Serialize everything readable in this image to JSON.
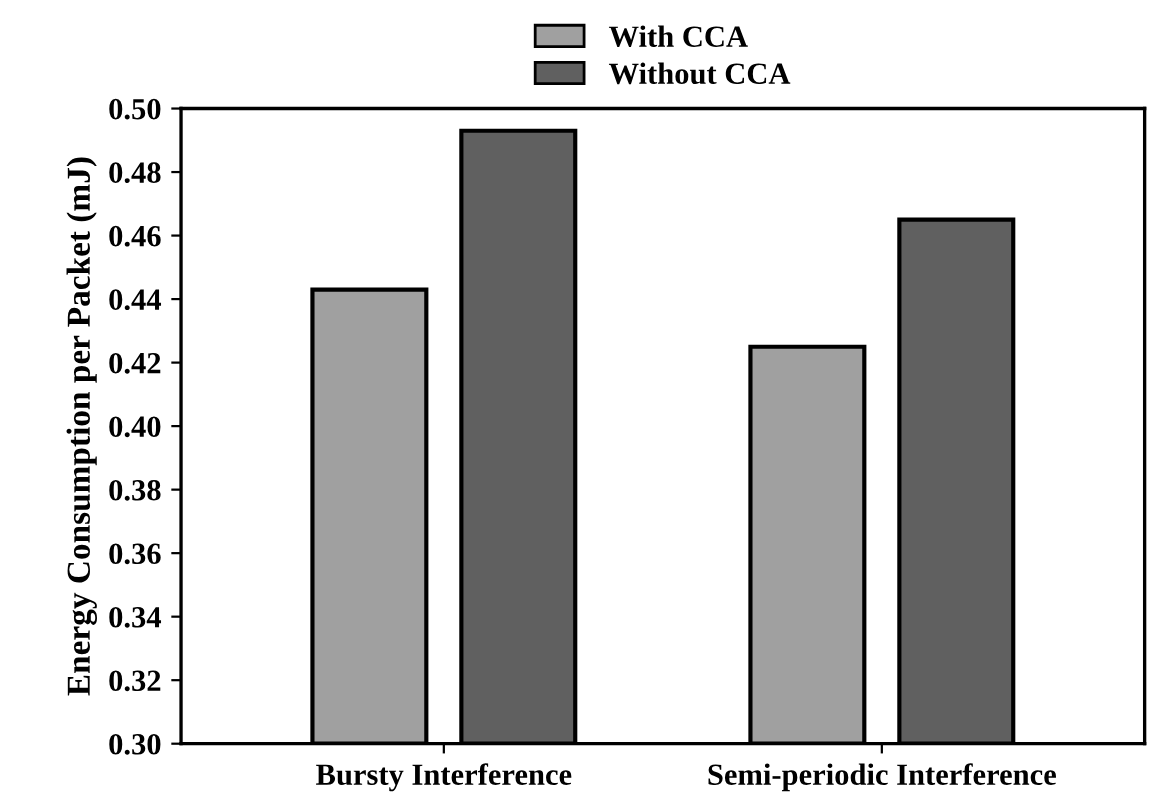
{
  "chart_data": {
    "type": "bar",
    "ylabel": "Energy Consumption per Packet (mJ)",
    "categories": [
      "Bursty Interference",
      "Semi-periodic Interference"
    ],
    "series": [
      {
        "name": "With CCA",
        "color": "#a0a0a0",
        "values": [
          0.443,
          0.425
        ]
      },
      {
        "name": "Without CCA",
        "color": "#606060",
        "values": [
          0.493,
          0.465
        ]
      }
    ],
    "ylim": [
      0.3,
      0.5
    ],
    "yticks": [
      {
        "value": 0.3,
        "label": "0.30"
      },
      {
        "value": 0.32,
        "label": "0.32"
      },
      {
        "value": 0.34,
        "label": "0.34"
      },
      {
        "value": 0.36,
        "label": "0.36"
      },
      {
        "value": 0.38,
        "label": "0.38"
      },
      {
        "value": 0.4,
        "label": "0.40"
      },
      {
        "value": 0.42,
        "label": "0.42"
      },
      {
        "value": 0.44,
        "label": "0.44"
      },
      {
        "value": 0.46,
        "label": "0.46"
      },
      {
        "value": 0.48,
        "label": "0.48"
      },
      {
        "value": 0.5,
        "label": "0.50"
      }
    ],
    "legend": "top",
    "grid": false
  }
}
